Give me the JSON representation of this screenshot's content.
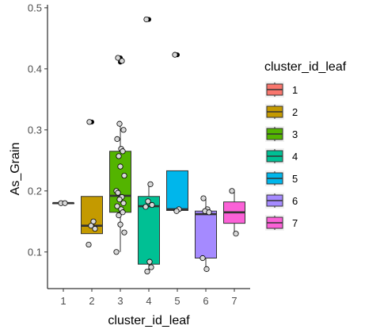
{
  "chart_data": {
    "type": "box",
    "xlabel": "cluster_id_leaf",
    "ylabel": "As_Grain",
    "ylim": [
      0.04,
      0.505
    ],
    "yticks": [
      0.1,
      0.2,
      0.3,
      0.4,
      0.5
    ],
    "ytick_labels": [
      "0.1",
      "0.2",
      "0.3",
      "0.4",
      "0.5"
    ],
    "grid": false,
    "legend": {
      "title": "cluster_id_leaf",
      "position": "right"
    },
    "categories": [
      "1",
      "2",
      "3",
      "4",
      "5",
      "6",
      "7"
    ],
    "colors": [
      "#F8766D",
      "#C49A00",
      "#53B400",
      "#00C094",
      "#00B6EB",
      "#A58AFF",
      "#FB61D7"
    ],
    "boxes": [
      {
        "category": "1",
        "q1": 0.18,
        "median": 0.18,
        "q3": 0.18,
        "whisker_low": 0.18,
        "whisker_high": 0.18,
        "outliers": []
      },
      {
        "category": "2",
        "q1": 0.13,
        "median": 0.143,
        "q3": 0.191,
        "whisker_low": 0.13,
        "whisker_high": 0.191,
        "outliers": [
          0.313
        ]
      },
      {
        "category": "3",
        "q1": 0.165,
        "median": 0.192,
        "q3": 0.265,
        "whisker_low": 0.1,
        "whisker_high": 0.31,
        "outliers": [
          0.411,
          0.418
        ]
      },
      {
        "category": "4",
        "q1": 0.08,
        "median": 0.175,
        "q3": 0.191,
        "whisker_low": 0.068,
        "whisker_high": 0.211,
        "outliers": [
          0.481
        ]
      },
      {
        "category": "5",
        "q1": 0.168,
        "median": 0.17,
        "q3": 0.233,
        "whisker_low": 0.168,
        "whisker_high": 0.233,
        "outliers": [
          0.423
        ]
      },
      {
        "category": "6",
        "q1": 0.09,
        "median": 0.162,
        "q3": 0.167,
        "whisker_low": 0.072,
        "whisker_high": 0.188,
        "outliers": []
      },
      {
        "category": "7",
        "q1": 0.147,
        "median": 0.165,
        "q3": 0.182,
        "whisker_low": 0.131,
        "whisker_high": 0.2,
        "outliers": []
      }
    ],
    "points": [
      {
        "category": "1",
        "values": [
          0.18,
          0.18
        ]
      },
      {
        "category": "2",
        "values": [
          0.313,
          0.15,
          0.143,
          0.138,
          0.112
        ]
      },
      {
        "category": "3",
        "values": [
          0.418,
          0.413,
          0.31,
          0.3,
          0.285,
          0.269,
          0.265,
          0.257,
          0.24,
          0.225,
          0.2,
          0.197,
          0.19,
          0.186,
          0.18,
          0.175,
          0.17,
          0.165,
          0.16,
          0.145,
          0.132,
          0.1
        ]
      },
      {
        "category": "4",
        "values": [
          0.481,
          0.211,
          0.183,
          0.177,
          0.174,
          0.084,
          0.075,
          0.068
        ]
      },
      {
        "category": "5",
        "values": [
          0.423,
          0.17,
          0.167
        ]
      },
      {
        "category": "6",
        "values": [
          0.188,
          0.17,
          0.167,
          0.165,
          0.09,
          0.072
        ]
      },
      {
        "category": "7",
        "values": [
          0.2,
          0.13
        ]
      }
    ]
  }
}
